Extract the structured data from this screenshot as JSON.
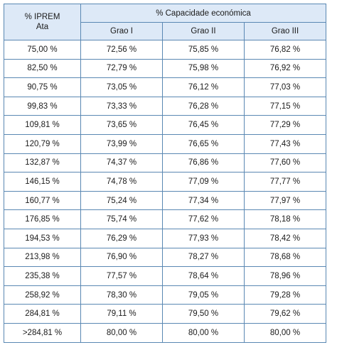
{
  "header": {
    "col1_line1": "% IPREM",
    "col1_line2": "Ata",
    "group_title": "% Capacidade económica",
    "grades": [
      "Grao I",
      "Grao II",
      "Grao III"
    ]
  },
  "rows": [
    [
      "75,00 %",
      "72,56 %",
      "75,85 %",
      "76,82 %"
    ],
    [
      "82,50 %",
      "72,79 %",
      "75,98 %",
      "76,92 %"
    ],
    [
      "90,75 %",
      "73,05 %",
      "76,12 %",
      "77,03 %"
    ],
    [
      "99,83 %",
      "73,33 %",
      "76,28 %",
      "77,15 %"
    ],
    [
      "109,81 %",
      "73,65 %",
      "76,45 %",
      "77,29 %"
    ],
    [
      "120,79 %",
      "73,99 %",
      "76,65 %",
      "77,43 %"
    ],
    [
      "132,87 %",
      "74,37 %",
      "76,86 %",
      "77,60 %"
    ],
    [
      "146,15 %",
      "74,78 %",
      "77,09 %",
      "77,77 %"
    ],
    [
      "160,77 %",
      "75,24 %",
      "77,34 %",
      "77,97 %"
    ],
    [
      "176,85 %",
      "75,74 %",
      "77,62 %",
      "78,18 %"
    ],
    [
      "194,53 %",
      "76,29 %",
      "77,93 %",
      "78,42 %"
    ],
    [
      "213,98 %",
      "76,90 %",
      "78,27 %",
      "78,68 %"
    ],
    [
      "235,38 %",
      "77,57 %",
      "78,64 %",
      "78,96 %"
    ],
    [
      "258,92 %",
      "78,30 %",
      "79,05 %",
      "79,28 %"
    ],
    [
      "284,81 %",
      "79,11 %",
      "79,50 %",
      "79,62 %"
    ],
    [
      ">284,81 %",
      "80,00 %",
      "80,00 %",
      "80,00 %"
    ]
  ]
}
